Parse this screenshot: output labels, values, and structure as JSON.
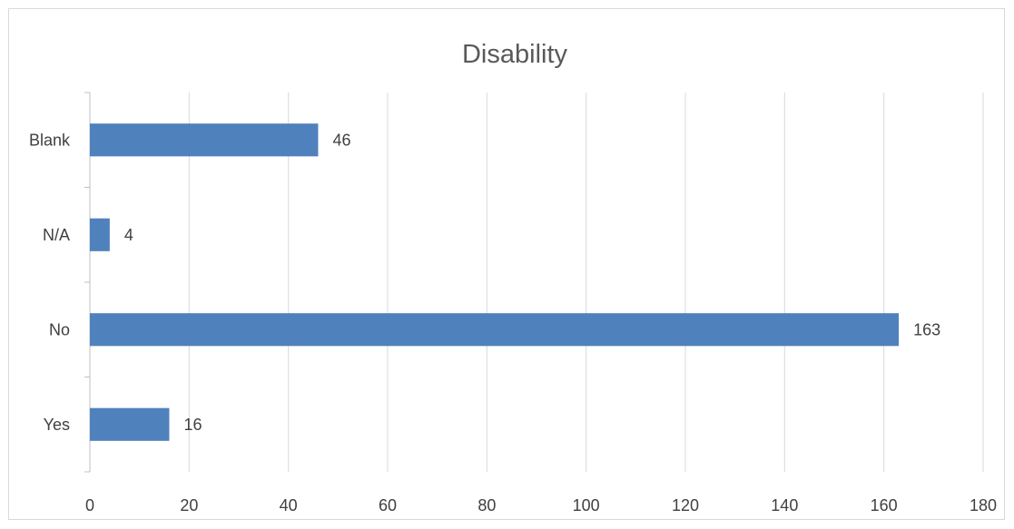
{
  "chart_data": {
    "type": "bar",
    "orientation": "horizontal",
    "title": "Disability",
    "categories": [
      "Yes",
      "No",
      "N/A",
      "Blank"
    ],
    "values": [
      16,
      163,
      4,
      46
    ],
    "data_labels": [
      "16",
      "163",
      "4",
      "46"
    ],
    "xlim": [
      0,
      180
    ],
    "x_ticks": [
      0,
      20,
      40,
      60,
      80,
      100,
      120,
      140,
      160,
      180
    ],
    "grid": "vertical",
    "legend": "none",
    "colors": {
      "bar": "#4f81bd",
      "grid": "#d9d9d9",
      "axis": "#bfbfbf",
      "text": "#404040",
      "title": "#595959"
    }
  }
}
